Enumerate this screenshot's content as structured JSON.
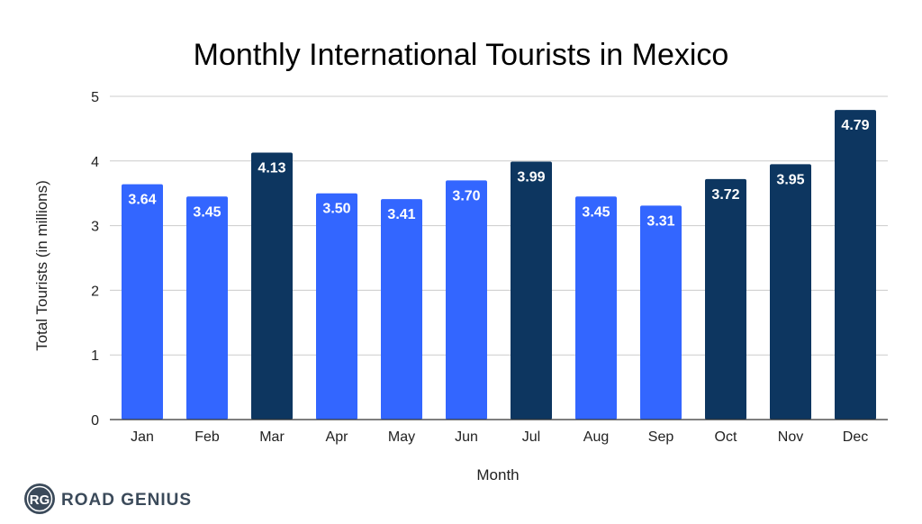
{
  "chart_data": {
    "type": "bar",
    "title": "Monthly International Tourists in Mexico",
    "xlabel": "Month",
    "ylabel": "Total Tourists  (in millions)",
    "ylim": [
      0,
      5
    ],
    "yticks": [
      0,
      1,
      2,
      3,
      4,
      5
    ],
    "grid": true,
    "categories": [
      "Jan",
      "Feb",
      "Mar",
      "Apr",
      "May",
      "Jun",
      "Jul",
      "Aug",
      "Sep",
      "Oct",
      "Nov",
      "Dec"
    ],
    "values": [
      3.64,
      3.45,
      4.13,
      3.5,
      3.41,
      3.7,
      3.99,
      3.45,
      3.31,
      3.72,
      3.95,
      4.79
    ],
    "value_labels": [
      "3.64",
      "3.45",
      "4.13",
      "3.50",
      "3.41",
      "3.70",
      "3.99",
      "3.45",
      "3.31",
      "3.72",
      "3.95",
      "4.79"
    ],
    "highlighted": [
      false,
      false,
      true,
      false,
      false,
      false,
      true,
      false,
      false,
      true,
      true,
      true
    ],
    "colors": {
      "default": "#3366ff",
      "highlight": "#0d3660",
      "grid": "#cccccc",
      "axis": "#333333"
    }
  },
  "logo": {
    "initials": "RG",
    "text": "ROAD GENIUS",
    "color": "#3b4a5a"
  }
}
